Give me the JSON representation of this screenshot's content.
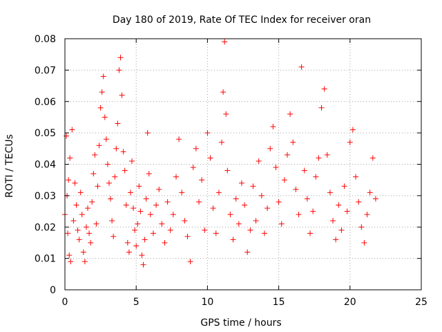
{
  "chart_data": {
    "type": "scatter",
    "title": "Day 180 of 2019, Rate Of TEC Index for receiver oran",
    "xlabel": "GPS time / hours",
    "ylabel": "ROTI / TECUs",
    "xlim": [
      0,
      25
    ],
    "ylim": [
      0,
      0.08
    ],
    "x_ticks": [
      0,
      5,
      10,
      15,
      20,
      25
    ],
    "x_tick_labels": [
      "0",
      "5",
      "10",
      "15",
      "20",
      "25"
    ],
    "y_ticks": [
      0,
      0.01,
      0.02,
      0.03,
      0.04,
      0.05,
      0.06,
      0.07,
      0.08
    ],
    "y_tick_labels": [
      "0",
      "0.01",
      "0.02",
      "0.03",
      "0.04",
      "0.05",
      "0.06",
      "0.07",
      "0.08"
    ],
    "grid": true,
    "marker": "plus",
    "color": "#ff0000",
    "series": [
      {
        "name": "ROTI",
        "x": [
          0.0,
          0.1,
          0.15,
          0.2,
          0.25,
          0.3,
          0.35,
          0.4,
          0.5,
          0.6,
          0.7,
          0.8,
          0.9,
          1.0,
          1.1,
          1.2,
          1.3,
          1.4,
          1.5,
          1.6,
          1.7,
          1.8,
          1.9,
          2.0,
          2.1,
          2.2,
          2.3,
          2.4,
          2.5,
          2.6,
          2.7,
          2.8,
          2.9,
          3.0,
          3.1,
          3.2,
          3.3,
          3.4,
          3.5,
          3.6,
          3.7,
          3.8,
          3.9,
          4.0,
          4.1,
          4.2,
          4.3,
          4.4,
          4.5,
          4.6,
          4.7,
          4.8,
          4.9,
          5.0,
          5.1,
          5.2,
          5.3,
          5.4,
          5.5,
          5.6,
          5.7,
          5.8,
          5.9,
          6.0,
          6.2,
          6.4,
          6.6,
          6.8,
          7.0,
          7.2,
          7.4,
          7.6,
          7.8,
          8.0,
          8.2,
          8.4,
          8.6,
          8.8,
          9.0,
          9.2,
          9.4,
          9.6,
          9.8,
          10.0,
          10.2,
          10.4,
          10.6,
          10.8,
          11.0,
          11.1,
          11.2,
          11.3,
          11.4,
          11.6,
          11.8,
          12.0,
          12.2,
          12.4,
          12.6,
          12.8,
          13.0,
          13.2,
          13.4,
          13.6,
          13.8,
          14.0,
          14.2,
          14.4,
          14.6,
          14.8,
          15.0,
          15.2,
          15.4,
          15.6,
          15.8,
          16.0,
          16.2,
          16.4,
          16.6,
          16.8,
          17.0,
          17.2,
          17.4,
          17.6,
          17.8,
          18.0,
          18.2,
          18.4,
          18.6,
          18.8,
          19.0,
          19.2,
          19.4,
          19.6,
          19.8,
          20.0,
          20.2,
          20.4,
          20.6,
          20.8,
          21.0,
          21.2,
          21.4,
          21.6,
          21.8
        ],
        "y": [
          0.024,
          0.049,
          0.03,
          0.018,
          0.035,
          0.011,
          0.042,
          0.009,
          0.051,
          0.022,
          0.034,
          0.027,
          0.019,
          0.016,
          0.031,
          0.024,
          0.012,
          0.009,
          0.02,
          0.026,
          0.018,
          0.015,
          0.028,
          0.037,
          0.043,
          0.021,
          0.033,
          0.046,
          0.058,
          0.063,
          0.068,
          0.055,
          0.048,
          0.04,
          0.034,
          0.029,
          0.022,
          0.017,
          0.036,
          0.045,
          0.053,
          0.07,
          0.074,
          0.062,
          0.044,
          0.038,
          0.027,
          0.015,
          0.012,
          0.031,
          0.041,
          0.026,
          0.019,
          0.014,
          0.021,
          0.033,
          0.025,
          0.011,
          0.008,
          0.016,
          0.029,
          0.05,
          0.037,
          0.024,
          0.018,
          0.027,
          0.032,
          0.021,
          0.015,
          0.028,
          0.019,
          0.024,
          0.036,
          0.048,
          0.031,
          0.022,
          0.017,
          0.009,
          0.039,
          0.045,
          0.028,
          0.035,
          0.019,
          0.05,
          0.042,
          0.026,
          0.018,
          0.031,
          0.047,
          0.063,
          0.079,
          0.056,
          0.038,
          0.024,
          0.016,
          0.029,
          0.021,
          0.034,
          0.027,
          0.012,
          0.019,
          0.033,
          0.022,
          0.041,
          0.03,
          0.018,
          0.026,
          0.045,
          0.052,
          0.039,
          0.028,
          0.021,
          0.035,
          0.043,
          0.056,
          0.047,
          0.032,
          0.024,
          0.071,
          0.038,
          0.029,
          0.018,
          0.025,
          0.036,
          0.042,
          0.058,
          0.064,
          0.043,
          0.031,
          0.022,
          0.016,
          0.027,
          0.019,
          0.033,
          0.025,
          0.047,
          0.051,
          0.036,
          0.028,
          0.02,
          0.015,
          0.024,
          0.031,
          0.042,
          0.029
        ]
      }
    ]
  }
}
